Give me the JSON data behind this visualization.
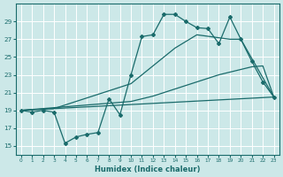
{
  "xlabel": "Humidex (Indice chaleur)",
  "xlim": [
    -0.5,
    23.5
  ],
  "ylim": [
    14,
    31
  ],
  "xticks": [
    0,
    1,
    2,
    3,
    4,
    5,
    6,
    7,
    8,
    9,
    10,
    11,
    12,
    13,
    14,
    15,
    16,
    17,
    18,
    19,
    20,
    21,
    22,
    23
  ],
  "yticks": [
    15,
    17,
    19,
    21,
    23,
    25,
    27,
    29
  ],
  "bg_color": "#cce8e8",
  "line_color": "#1a6b6b",
  "grid_color": "#b8d8d8",
  "line1_x": [
    0,
    1,
    2,
    3,
    4,
    5,
    6,
    7,
    8,
    9,
    10,
    11,
    12,
    13,
    14,
    15,
    16,
    17,
    18,
    19,
    20,
    21,
    22,
    23
  ],
  "line1_y": [
    19,
    18.8,
    19,
    18.8,
    15.3,
    16.0,
    16.3,
    16.5,
    20.3,
    18.5,
    23.0,
    27.3,
    27.5,
    29.8,
    29.8,
    29.0,
    28.3,
    28.2,
    26.5,
    29.5,
    27.0,
    24.5,
    22.2,
    20.5
  ],
  "line2_x": [
    0,
    1,
    2,
    3,
    4,
    5,
    6,
    7,
    8,
    9,
    10,
    11,
    12,
    13,
    14,
    15,
    16,
    17,
    18,
    19,
    20,
    21,
    22,
    23
  ],
  "line2_y": [
    19,
    19.1,
    19.2,
    19.3,
    19.4,
    19.5,
    19.6,
    19.7,
    19.8,
    19.9,
    20.0,
    20.3,
    20.6,
    21.0,
    21.4,
    21.8,
    22.2,
    22.6,
    23.0,
    23.3,
    23.6,
    23.9,
    24.0,
    20.5
  ],
  "line3_x": [
    0,
    23
  ],
  "line3_y": [
    19,
    20.5
  ],
  "line4_x": [
    0,
    3,
    10,
    14,
    16,
    19,
    20,
    23
  ],
  "line4_y": [
    19,
    19.2,
    22.0,
    26.0,
    27.5,
    27.0,
    27.0,
    20.5
  ]
}
